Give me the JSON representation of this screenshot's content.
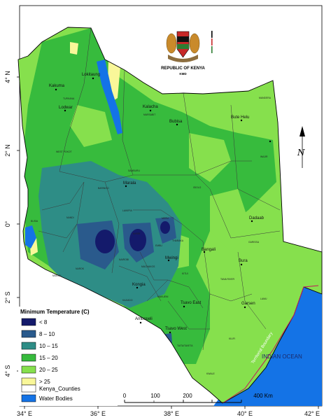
{
  "emblem": {
    "title": "REPUBLIC OF KENYA",
    "subtitle": "KMD"
  },
  "axes": {
    "x_ticks": [
      "34° E",
      "36° E",
      "38° E",
      "40° E",
      "42° E"
    ],
    "y_ticks": [
      "4° N",
      "2° N",
      "0°",
      "2° S",
      "4° S"
    ]
  },
  "towns": [
    "Lokitaung",
    "Kakuma",
    "Lodwar",
    "Kalacha",
    "Bubisa",
    "Bute Helu",
    "Marsabit",
    "Marala",
    "Dadaab",
    "Bangali",
    "Mwingi",
    "Bura",
    "Kongia",
    "Garsen",
    "Tsavo East",
    "Amboseli",
    "Tsavo West"
  ],
  "counties": [
    "TURKANA",
    "MARSABIT",
    "MANDERA",
    "WAJIR",
    "ISIOLO",
    "SAMBURU",
    "GARISSA",
    "TANA RIVER",
    "LAMU",
    "KILIFI",
    "KWALE",
    "TAITA/TAVETA",
    "MAKUENI",
    "KITUI",
    "KAJIADO",
    "NAROK",
    "MIGORI",
    "LAIKIPIA",
    "EMBU",
    "MERU",
    "WEST POKOT",
    "BARINGO",
    "BUSIA",
    "NAIROBI",
    "MACHAKOS",
    "NYERI",
    "NANDI",
    "THARAKA"
  ],
  "ocean_label": "INDIAN OCEAN",
  "boundary_label": "Territorial Boundary",
  "north_label": "N",
  "legend": {
    "title": "Minimum Temperature (C)",
    "items": [
      {
        "label": "< 8",
        "color": "#141a6b"
      },
      {
        "label": "8 – 10",
        "color": "#2a5a8c"
      },
      {
        "label": "10 – 15",
        "color": "#2e8d86"
      },
      {
        "label": "15 – 20",
        "color": "#37bb3d"
      },
      {
        "label": "20 – 25",
        "color": "#86e04d"
      },
      {
        "label": "> 25",
        "color": "#f9f799"
      }
    ],
    "counties_label": "Kenya_Counties",
    "water_label": "Water Bodies",
    "water_color": "#1473e6"
  },
  "scale_bar": {
    "labels": [
      "0",
      "100",
      "200",
      "400 Km"
    ]
  }
}
